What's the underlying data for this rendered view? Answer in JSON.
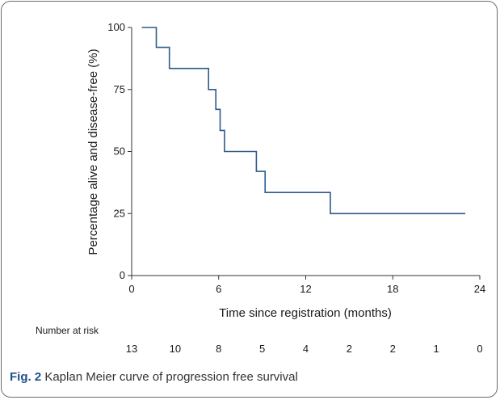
{
  "chart_data": {
    "type": "line",
    "step": true,
    "xlabel": "Time since registration (months)",
    "ylabel": "Percentage alive and disease-free (%)",
    "xlim": [
      0,
      24
    ],
    "ylim": [
      0,
      100
    ],
    "xticks": [
      0,
      6,
      12,
      18,
      24
    ],
    "yticks": [
      0,
      25,
      50,
      75,
      100
    ],
    "grid": false,
    "series": [
      {
        "color": "#2d5a8c",
        "x": [
          0.7,
          1.7,
          1.7,
          2.6,
          2.6,
          5.3,
          5.3,
          5.8,
          5.8,
          6.1,
          6.1,
          6.4,
          6.4,
          8.6,
          8.6,
          9.2,
          9.2,
          13.7,
          13.7,
          23.0
        ],
        "y": [
          100,
          100,
          92,
          92,
          83.5,
          83.5,
          75,
          75,
          67,
          67,
          58.5,
          58.5,
          50,
          50,
          42,
          42,
          33.5,
          33.5,
          25,
          25
        ]
      }
    ],
    "risk_table": {
      "label": "Number at risk",
      "times": [
        0,
        3,
        6,
        9,
        12,
        15,
        18,
        21,
        24
      ],
      "counts": [
        "13",
        "10",
        "8",
        "5",
        "4",
        "2",
        "2",
        "1",
        "0"
      ]
    }
  },
  "caption": {
    "label": "Fig. 2",
    "text": " Kaplan Meier curve of progression free survival"
  }
}
